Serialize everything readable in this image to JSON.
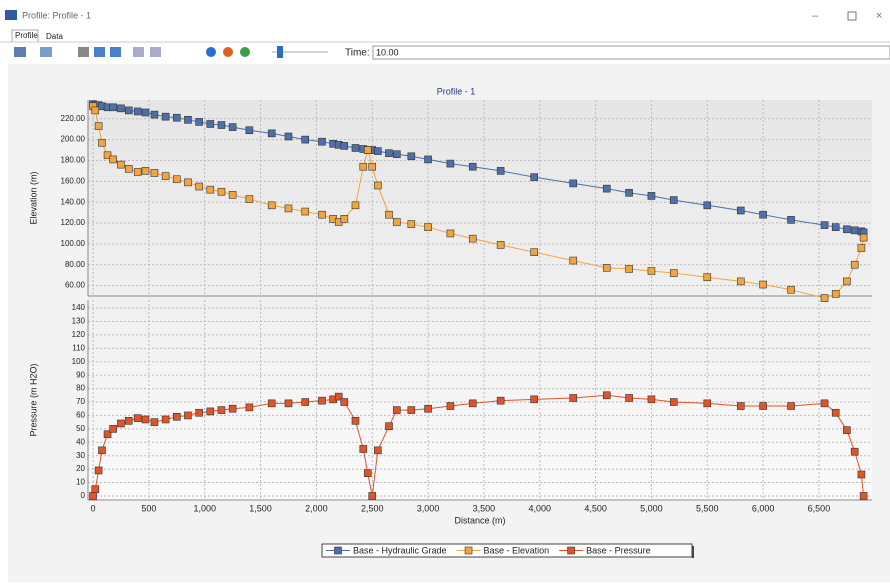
{
  "window": {
    "title": "Profile: Profile - 1",
    "tabs": [
      "Profile",
      "Data"
    ],
    "time_label": "Time:",
    "time_value": "10.00"
  },
  "chart_data": [
    {
      "type": "line",
      "title": "Profile - 1",
      "ylabel": "Elevation (m)",
      "x": [
        0,
        20,
        50,
        80,
        130,
        180,
        250,
        320,
        400,
        470,
        550,
        650,
        750,
        850,
        950,
        1050,
        1150,
        1250,
        1400,
        1600,
        1750,
        1900,
        2050,
        2150,
        2200,
        2250,
        2350,
        2420,
        2460,
        2500,
        2550,
        2650,
        2720,
        2850,
        3000,
        3200,
        3400,
        3650,
        3950,
        4300,
        4600,
        4800,
        5000,
        5200,
        5500,
        5800,
        6000,
        6250,
        6550,
        6650,
        6750,
        6820,
        6880,
        6900
      ],
      "series": [
        {
          "name": "Base - Hydraulic Grade",
          "color": "#4f6fa8",
          "values": [
            234,
            233,
            233,
            232,
            231,
            231,
            230,
            228,
            227,
            226,
            224,
            222,
            221,
            219,
            217,
            215,
            214,
            212,
            209,
            206,
            203,
            200,
            198,
            196,
            195,
            194,
            192,
            191,
            190,
            190,
            189,
            187,
            186,
            184,
            181,
            177,
            174,
            170,
            164,
            158,
            153,
            149,
            146,
            142,
            137,
            132,
            128,
            123,
            118,
            116,
            114,
            113,
            112,
            111
          ]
        },
        {
          "name": "Base - Elevation",
          "color": "#f0a540",
          "values": [
            232,
            228,
            213,
            197,
            185,
            181,
            176,
            172,
            169,
            170,
            168,
            165,
            162,
            159,
            155,
            152,
            150,
            147,
            143,
            137,
            134,
            131,
            128,
            124,
            121,
            124,
            137,
            174,
            190,
            174,
            156,
            128,
            121,
            119,
            116,
            110,
            105,
            99,
            92,
            84,
            77,
            76,
            74,
            72,
            68,
            64,
            61,
            56,
            48,
            52,
            64,
            80,
            96,
            106
          ]
        }
      ],
      "xlim": [
        -45,
        6975
      ],
      "xticks": [
        0,
        500,
        {
          "value": 1000,
          "label": "1,000"
        },
        {
          "value": 1500,
          "label": "1,500"
        },
        {
          "value": 2000,
          "label": "2,000"
        },
        {
          "value": 2500,
          "label": "2,500"
        },
        {
          "value": 3000,
          "label": "3,000"
        },
        {
          "value": 3500,
          "label": "3,500"
        },
        {
          "value": 4000,
          "label": "4,000"
        },
        {
          "value": 4500,
          "label": "4,500"
        },
        {
          "value": 5000,
          "label": "5,000"
        },
        {
          "value": 5500,
          "label": "5,500"
        },
        {
          "value": 6000,
          "label": "6,000"
        },
        {
          "value": 6500,
          "label": "6,500"
        }
      ],
      "ylim": [
        50,
        238
      ],
      "yticks": [
        {
          "value": 60,
          "label": "60.00"
        },
        {
          "value": 80,
          "label": "80.00"
        },
        {
          "value": 100,
          "label": "100.00"
        },
        {
          "value": 120,
          "label": "120.00"
        },
        {
          "value": 140,
          "label": "140.00"
        },
        {
          "value": 160,
          "label": "160.00"
        },
        {
          "value": 180,
          "label": "180.00"
        },
        {
          "value": 200,
          "label": "200.00"
        },
        {
          "value": 220,
          "label": "220.00"
        }
      ],
      "grid": true
    },
    {
      "type": "line",
      "ylabel": "Pressure (m H2O)",
      "xlabel": "Distance (m)",
      "x": [
        0,
        20,
        50,
        80,
        130,
        180,
        250,
        320,
        400,
        470,
        550,
        650,
        750,
        850,
        950,
        1050,
        1150,
        1250,
        1400,
        1600,
        1750,
        1900,
        2050,
        2150,
        2200,
        2250,
        2350,
        2420,
        2460,
        2500,
        2550,
        2650,
        2720,
        2850,
        3000,
        3200,
        3400,
        3650,
        3950,
        4300,
        4600,
        4800,
        5000,
        5200,
        5500,
        5800,
        6000,
        6250,
        6550,
        6650,
        6750,
        6820,
        6880,
        6900
      ],
      "series": [
        {
          "name": "Base - Pressure",
          "color": "#e0542a",
          "values": [
            0,
            5,
            19,
            34,
            46,
            50,
            54,
            56,
            58,
            57,
            55,
            57,
            59,
            60,
            62,
            63,
            64,
            65,
            66,
            69,
            69,
            70,
            71,
            72,
            74,
            70,
            56,
            35,
            17,
            0,
            34,
            52,
            64,
            64,
            65,
            67,
            69,
            71,
            72,
            73,
            75,
            73,
            72,
            70,
            69,
            67,
            67,
            67,
            69,
            62,
            49,
            33,
            16,
            0
          ]
        }
      ],
      "xlim": [
        -45,
        6975
      ],
      "xticks": [
        0,
        500,
        {
          "value": 1000,
          "label": "1,000"
        },
        {
          "value": 1500,
          "label": "1,500"
        },
        {
          "value": 2000,
          "label": "2,000"
        },
        {
          "value": 2500,
          "label": "2,500"
        },
        {
          "value": 3000,
          "label": "3,000"
        },
        {
          "value": 3500,
          "label": "3,500"
        },
        {
          "value": 4000,
          "label": "4,000"
        },
        {
          "value": 4500,
          "label": "4,500"
        },
        {
          "value": 5000,
          "label": "5,000"
        },
        {
          "value": 5500,
          "label": "5,500"
        },
        {
          "value": 6000,
          "label": "6,000"
        },
        {
          "value": 6500,
          "label": "6,500"
        }
      ],
      "ylim": [
        -3,
        146
      ],
      "yticks": [
        0,
        10,
        20,
        30,
        40,
        50,
        60,
        70,
        80,
        90,
        100,
        110,
        120,
        130,
        140
      ],
      "grid": true
    }
  ]
}
